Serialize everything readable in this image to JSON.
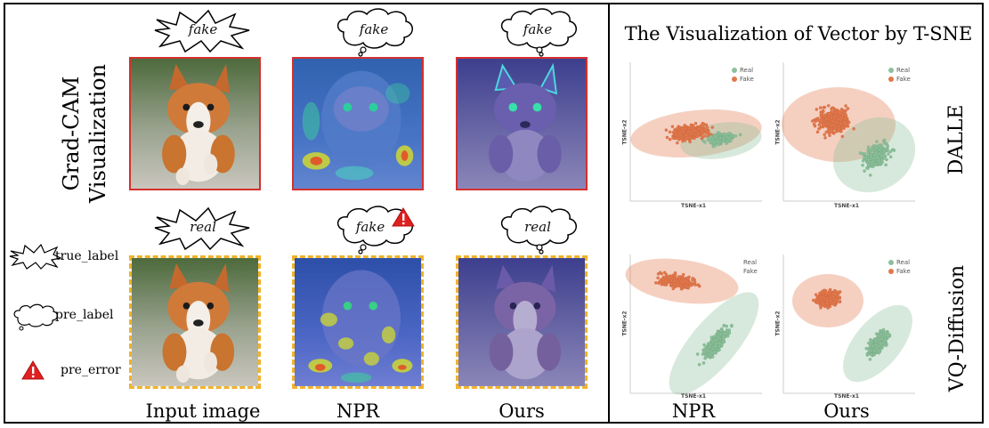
{
  "left": {
    "row_label": [
      "Grad-CAM",
      "Visualization"
    ],
    "top_row_labels": [
      "fake",
      "fake",
      "fake"
    ],
    "bottom_row_labels": [
      "real",
      "fake",
      "real"
    ],
    "legend": {
      "true_label": "true_label",
      "pre_label": "pre_label",
      "pre_error": "pre_error"
    },
    "column_titles": [
      "Input image",
      "NPR",
      "Ours"
    ]
  },
  "right": {
    "title": "The Visualization of Vector by T-SNE",
    "row_labels": [
      "DALLE",
      "VQ-Diffusion"
    ],
    "column_titles": [
      "NPR",
      "Ours"
    ],
    "axis": {
      "x": "TSNE-x1",
      "y": "TSNE-x2"
    },
    "legend": [
      "Real",
      "Fake"
    ],
    "colors": {
      "real": "#8cc09a",
      "fake": "#e2784c"
    }
  }
}
